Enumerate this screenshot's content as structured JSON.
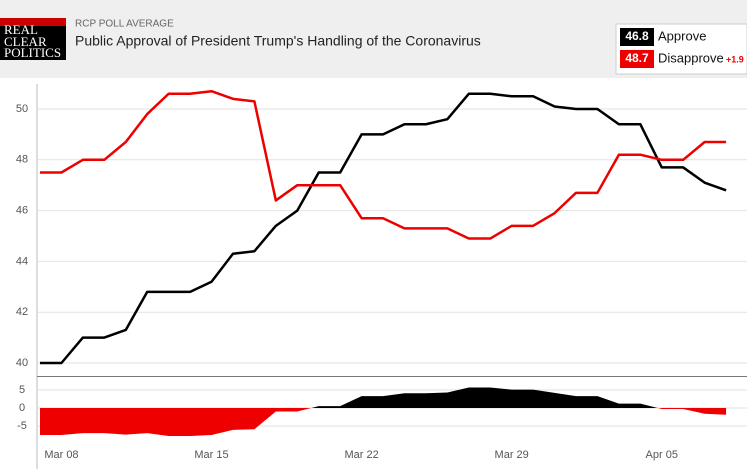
{
  "header": {
    "logo": [
      "REAL",
      "CLEAR",
      "POLITICS"
    ],
    "kicker": "RCP POLL AVERAGE"
  },
  "chart_data": [
    {
      "type": "line",
      "title": "Public Approval of President Trump's Handling of the Coronavirus",
      "categories": [
        null,
        "Mar 08",
        null,
        null,
        null,
        null,
        null,
        null,
        "Mar 15",
        null,
        null,
        null,
        null,
        null,
        null,
        "Mar 22",
        null,
        null,
        null,
        null,
        null,
        null,
        "Mar 29",
        null,
        null,
        null,
        null,
        null,
        null,
        "Apr 05",
        null,
        null,
        null
      ],
      "series": [
        {
          "name": "Approve",
          "color": "#000000",
          "legend_value": 46.8,
          "values": [
            40.0,
            40.0,
            41.0,
            41.0,
            41.3,
            42.8,
            42.8,
            42.8,
            43.2,
            44.3,
            44.4,
            45.4,
            46.0,
            47.5,
            47.5,
            49.0,
            49.0,
            49.4,
            49.4,
            49.6,
            50.6,
            50.6,
            50.5,
            50.5,
            50.1,
            50.0,
            50.0,
            49.4,
            49.4,
            47.7,
            47.7,
            47.1,
            46.8
          ]
        },
        {
          "name": "Disapprove",
          "color": "#ee0000",
          "legend_value": 48.7,
          "spread_label": "+1.9",
          "values": [
            47.5,
            47.5,
            48.0,
            48.0,
            48.7,
            49.8,
            50.6,
            50.6,
            50.7,
            50.4,
            50.3,
            46.4,
            47.0,
            47.0,
            47.0,
            45.7,
            45.7,
            45.3,
            45.3,
            45.3,
            44.9,
            44.9,
            45.4,
            45.4,
            45.9,
            46.7,
            46.7,
            48.2,
            48.2,
            48.0,
            48.0,
            48.7,
            48.7
          ]
        }
      ],
      "ylim": [
        39.5,
        51
      ],
      "yticks": [
        40,
        42,
        44,
        46,
        48,
        50
      ],
      "grid": true
    },
    {
      "type": "area",
      "colors": {
        "positive": "#000000",
        "negative": "#ee0000"
      },
      "values": [
        -7.5,
        -7.5,
        -7.0,
        -7.0,
        -7.4,
        -7.0,
        -7.8,
        -7.8,
        -7.5,
        -6.1,
        -5.9,
        -1.0,
        -1.0,
        0.5,
        0.5,
        3.3,
        3.3,
        4.1,
        4.1,
        4.3,
        5.7,
        5.7,
        5.1,
        5.1,
        4.2,
        3.3,
        3.3,
        1.2,
        1.2,
        -0.3,
        -0.3,
        -1.6,
        -1.9
      ],
      "ylim": [
        -8.9,
        8.6
      ],
      "yticks": [
        5,
        0,
        -5
      ],
      "grid": true
    }
  ]
}
